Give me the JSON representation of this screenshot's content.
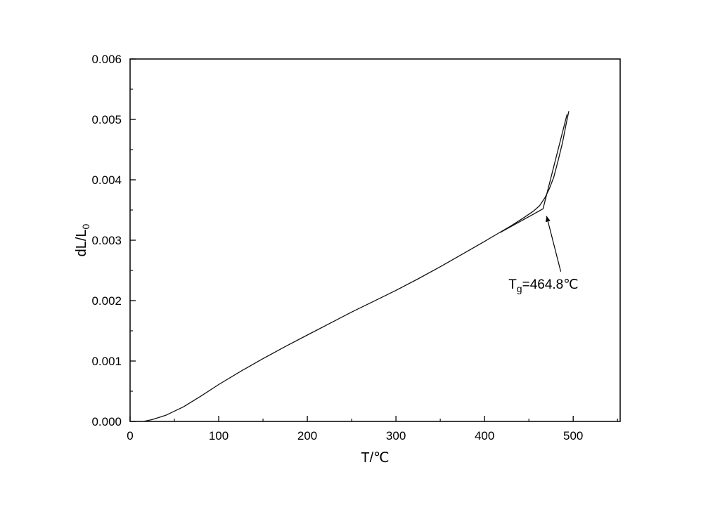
{
  "page": {
    "background": "#ffffff",
    "title": ""
  },
  "chart_data": {
    "type": "line",
    "title": "",
    "xlabel": "T/℃",
    "ylabel_parts": [
      {
        "text": "dL/L",
        "sub": false
      },
      {
        "text": "0",
        "sub": true
      }
    ],
    "xlim": [
      0,
      553
    ],
    "ylim": [
      0,
      0.006
    ],
    "x_major_ticks": [
      0,
      100,
      200,
      300,
      400,
      500
    ],
    "x_minor_ticks": [
      50,
      150,
      250,
      350,
      450,
      550
    ],
    "y_major_ticks": [
      0.0,
      0.001,
      0.002,
      0.003,
      0.004,
      0.005,
      0.006
    ],
    "y_minor_ticks": [
      0.0005,
      0.0015,
      0.0025,
      0.0035,
      0.0045,
      0.0055
    ],
    "y_tick_decimals": 3,
    "grid": false,
    "legend": null,
    "frame": true,
    "axis_color": "#000000",
    "line_color": "#111111",
    "series": [
      {
        "name": "thermal-expansion-measured-curve",
        "x": [
          15,
          25,
          40,
          60,
          80,
          100,
          125,
          150,
          175,
          200,
          225,
          250,
          275,
          300,
          325,
          350,
          375,
          400,
          415,
          430,
          445,
          455,
          462,
          468,
          473,
          478,
          483,
          488,
          492,
          495
        ],
        "y": [
          0.0,
          3e-05,
          0.0001,
          0.00024,
          0.00042,
          0.00061,
          0.00083,
          0.00104,
          0.00124,
          0.00143,
          0.00162,
          0.00181,
          0.00199,
          0.00217,
          0.00236,
          0.00256,
          0.00277,
          0.00298,
          0.00311,
          0.00324,
          0.00338,
          0.00348,
          0.00357,
          0.0037,
          0.00385,
          0.00404,
          0.00432,
          0.00462,
          0.00492,
          0.00513
        ]
      },
      {
        "name": "tangent-construction-lines",
        "x": [
          418,
          466,
          493
        ],
        "y": [
          0.00313,
          0.00352,
          0.00508
        ]
      }
    ],
    "annotation": {
      "label": "Tg=464.8℃",
      "text_parts": [
        {
          "text": "T",
          "sub": false
        },
        {
          "text": "g",
          "sub": true
        },
        {
          "text": "=464.8℃",
          "sub": false
        }
      ],
      "text_pos": {
        "x": 427,
        "y": 0.0022
      },
      "arrow": {
        "from": {
          "x": 486,
          "y": 0.00248
        },
        "to": {
          "x": 470,
          "y": 0.0034
        }
      }
    }
  }
}
